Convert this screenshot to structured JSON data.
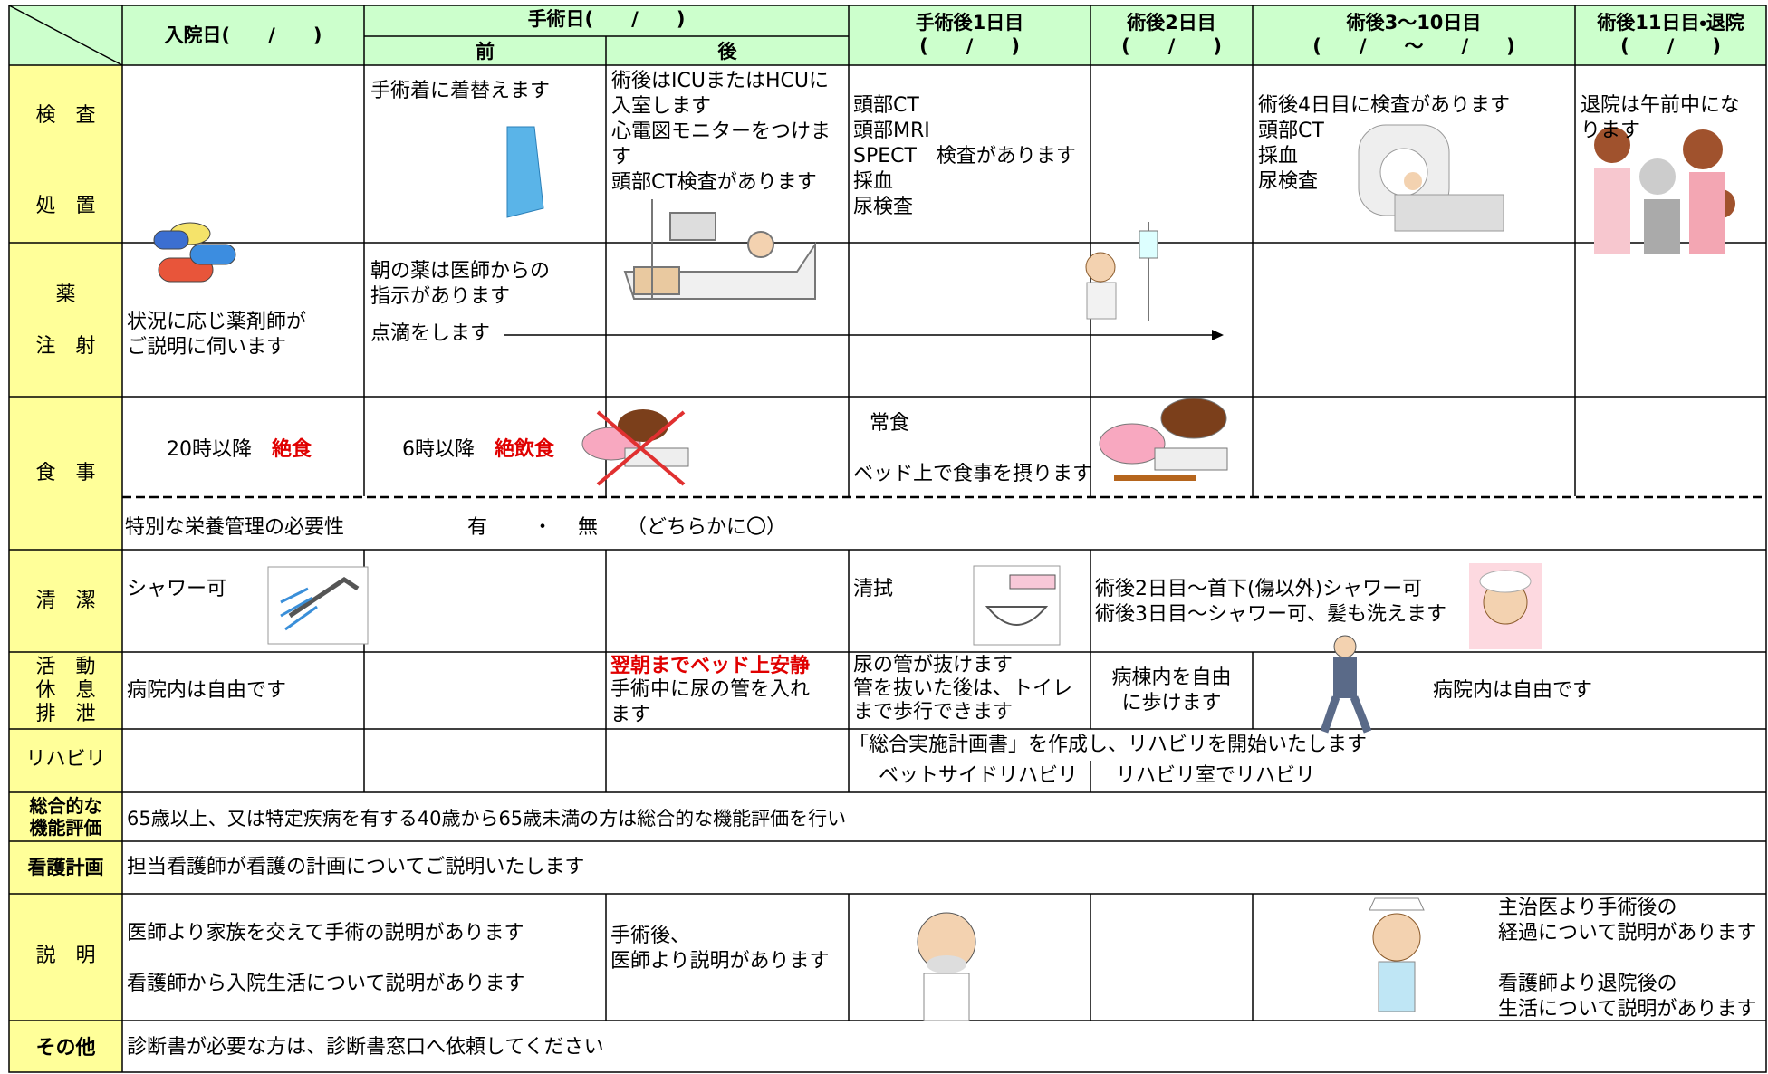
{
  "header": {
    "admission": "入院日(　　/　　)",
    "surgery": "手術日(　　/　　)",
    "before": "前",
    "after": "後",
    "post_day1": "手術後1日目\n(　　/　　)",
    "post_day2": "術後2日目\n(　　/　　)",
    "post_days3_10": "術後3～10日目\n(　　/　　～　　/　　)",
    "post_day11": "術後11日目・退院\n(　　/　　)"
  },
  "rows": {
    "exam": {
      "labels": [
        "検　査",
        "処　置"
      ],
      "before": "手術着に着替えます",
      "after": "術後はICUまたはHCUに\n入室します\n心電図モニターをつけま\nす\n頭部CT検査があります",
      "post_day1": "頭部CT\n頭部MRI\nSPECT　検査があります\n採血\n尿検査",
      "post_days3_10": "術後4日目に検査があります\n頭部CT\n採血\n尿検査",
      "post_day11": "退院は午前中にな\nります"
    },
    "medication": {
      "labels": [
        "薬",
        "注　射"
      ],
      "admission": "状況に応じ薬剤師が\nご説明に伺います",
      "before": "朝の薬は医師からの\n指示があります",
      "drip": "点滴をします"
    },
    "meal": {
      "label": "食　事",
      "admission": {
        "time": "20時以降",
        "emphasis": "絶食"
      },
      "before": {
        "time": "6時以降",
        "emphasis": "絶飲食"
      },
      "post_day1": "常食",
      "post_day1_note": "ベッド上で食事を摂ります",
      "nutrition": {
        "text": "特別な栄養管理の必要性",
        "yes": "有",
        "separator": "・",
        "no": "無",
        "note": "（どちらかに〇）"
      }
    },
    "hygiene": {
      "label": "清　潔",
      "admission": "シャワー可",
      "post_day1": "清拭",
      "post_day2": "術後2日目～首下(傷以外)シャワー可\n術後3日目～シャワー可、髪も洗えます"
    },
    "activity": {
      "label": "活　動\n休　息\n排　泄",
      "admission": "病院内は自由です",
      "after_emphasis": "翌朝までベッド上安静",
      "after": "手術中に尿の管を入れ\nます",
      "post_day1": "尿の管が抜けます\n管を抜いた後は、トイレ\nまで歩行できます",
      "post_day2": "病棟内を自由\nに歩けます",
      "post_days3_10": "病院内は自由です"
    },
    "rehab": {
      "label": "リハビリ",
      "plan": "「総合実施計画書」を作成し、リハビリを開始いたします",
      "bedside": "ベットサイドリハビリ",
      "room": "リハビリ室でリハビリ"
    },
    "assessment": {
      "label": "総合的な\n機能評価",
      "text": "65歳以上、又は特定疾病を有する40歳から65歳未満の方は総合的な機能評価を行い"
    },
    "nursing_plan": {
      "label": "看護計画",
      "text": "担当看護師が看護の計画についてご説明いたします"
    },
    "explanation": {
      "label": "説　明",
      "admission": "医師より家族を交えて手術の説明があります",
      "admission_nurse": "看護師から入院生活について説明があります",
      "after": "手術後、\n医師より説明があります",
      "post_day11_doctor": "主治医より手術後の\n経過について説明があります",
      "post_day11_nurse": "看護師より退院後の\n生活について説明があります"
    },
    "other": {
      "label": "その他",
      "text": "診断書が必要な方は、診断書窓口へ依頼してください"
    }
  }
}
